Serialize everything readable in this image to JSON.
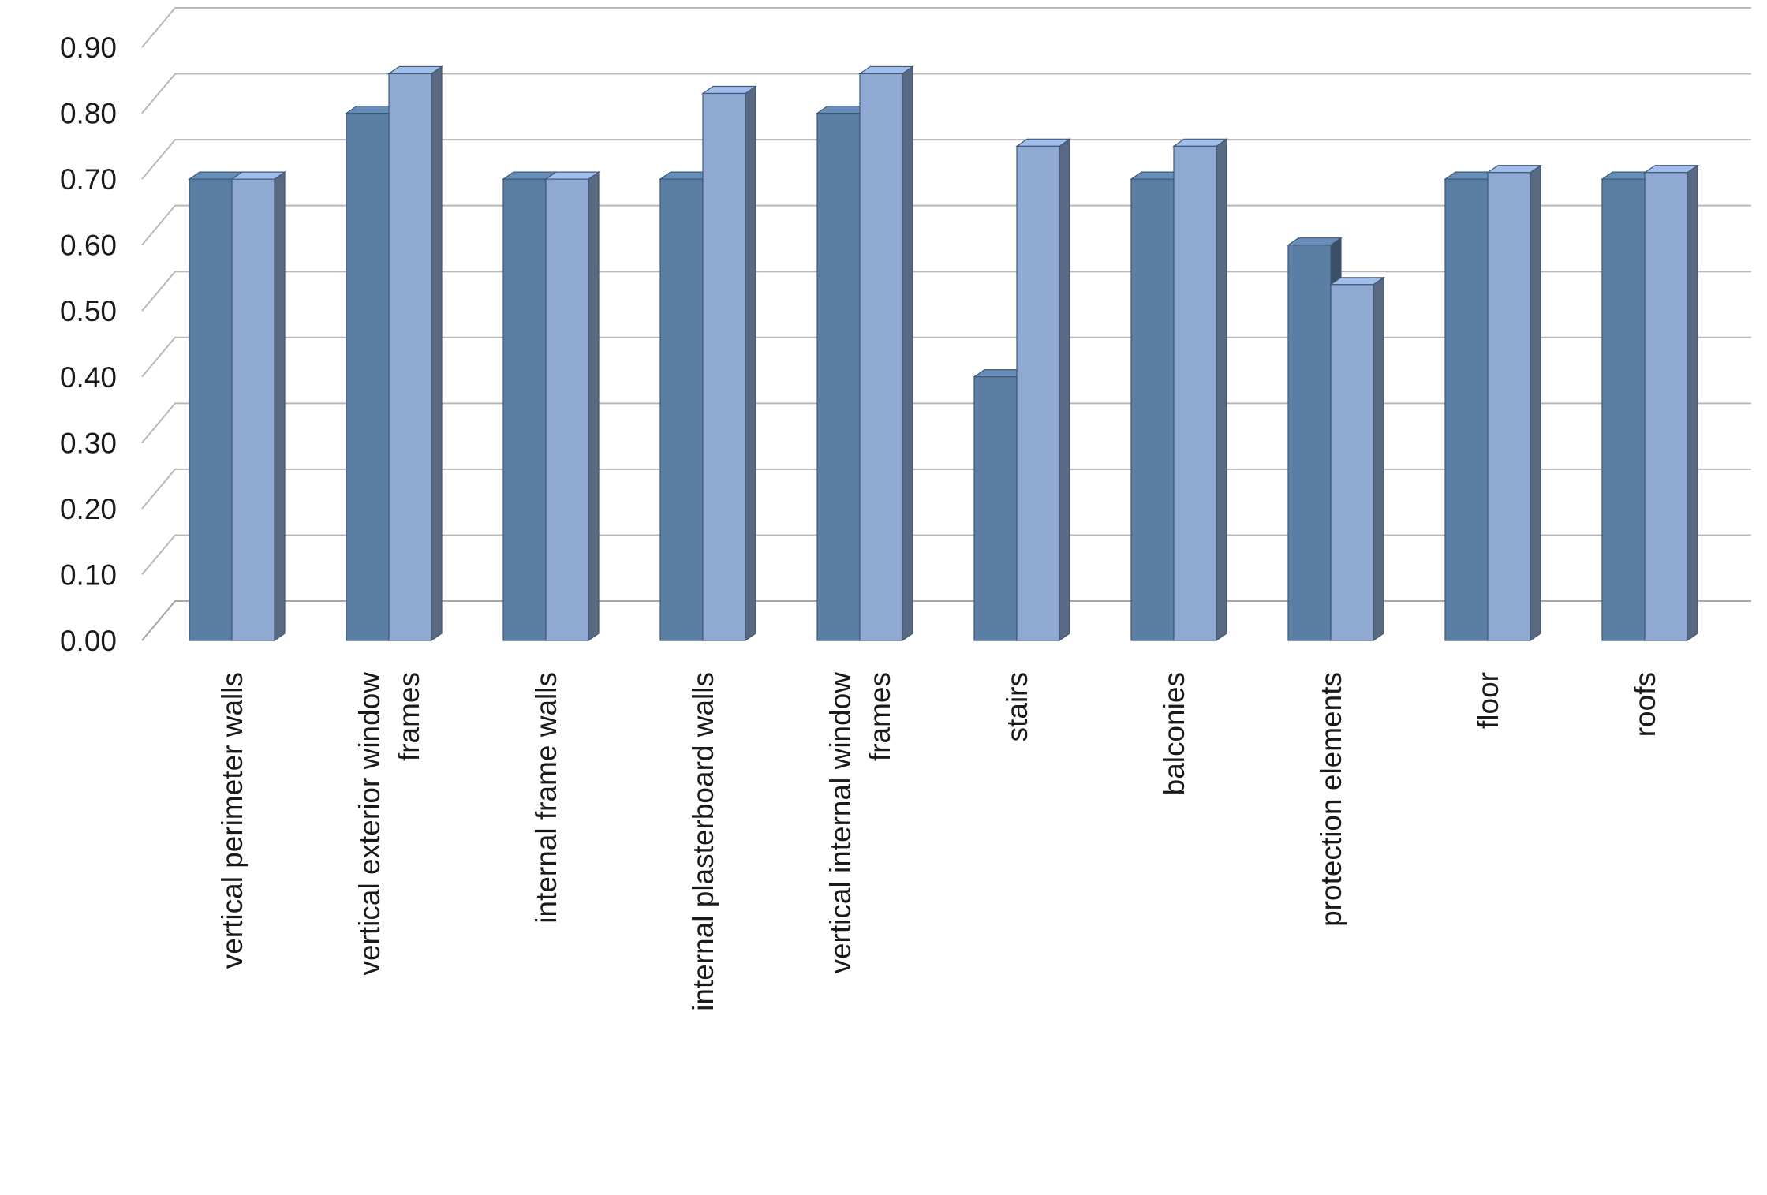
{
  "chart_data": {
    "type": "bar",
    "categories": [
      [
        "vertical perimeter walls"
      ],
      [
        "vertical exterior window",
        "frames"
      ],
      [
        "internal frame walls"
      ],
      [
        "internal plasterboard walls"
      ],
      [
        "vertical internal window",
        "frames"
      ],
      [
        "stairs"
      ],
      [
        "balconies"
      ],
      [
        "protection elements"
      ],
      [
        "floor"
      ],
      [
        "roofs"
      ]
    ],
    "series": [
      {
        "values": [
          0.7,
          0.8,
          0.7,
          0.7,
          0.8,
          0.4,
          0.7,
          0.6,
          0.7,
          0.7
        ],
        "color": "#5b7fa4"
      },
      {
        "values": [
          0.7,
          0.86,
          0.7,
          0.83,
          0.86,
          0.75,
          0.75,
          0.54,
          0.71,
          0.71
        ],
        "color": "#90a9d2"
      }
    ],
    "yticks": [
      "0.00",
      "0.10",
      "0.20",
      "0.30",
      "0.40",
      "0.50",
      "0.60",
      "0.70",
      "0.80",
      "0.90"
    ],
    "ylim": [
      0,
      0.9
    ],
    "grid": true,
    "style": "3d-clustered-column"
  }
}
